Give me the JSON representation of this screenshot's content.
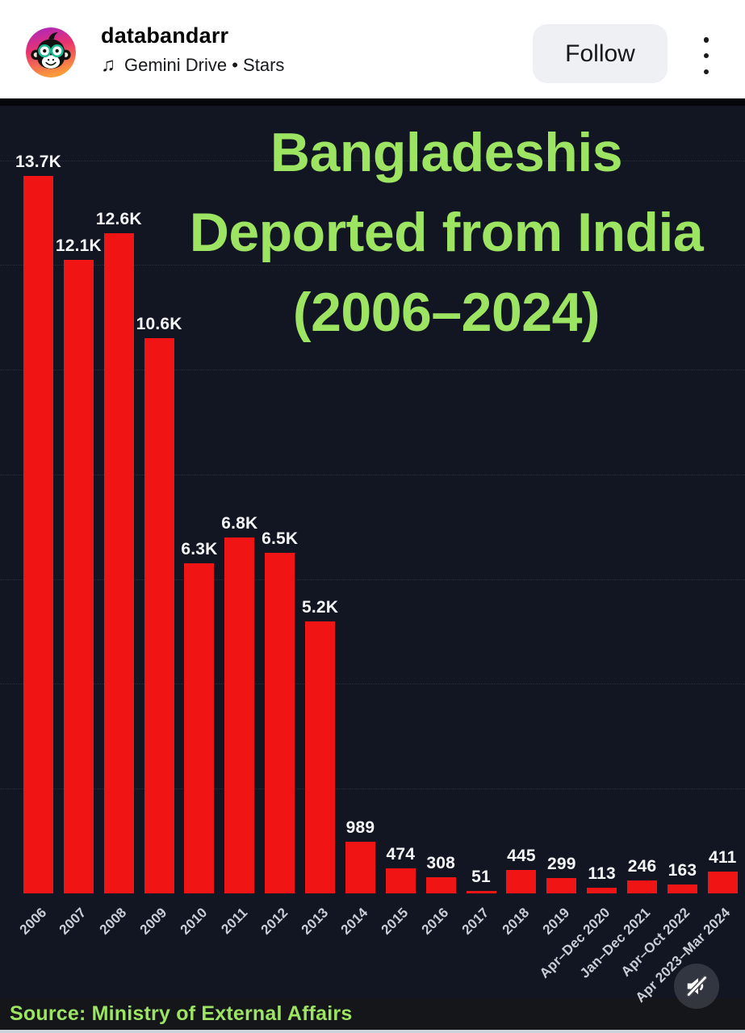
{
  "header": {
    "username": "databandarr",
    "music_icon": "♫",
    "audio_label": "Gemini Drive • Stars",
    "follow_label": "Follow"
  },
  "chart": {
    "title_lines": [
      "Bangladeshis",
      "Deported from India",
      "(2006–2024)"
    ],
    "source": "Source: Ministry of External Affairs",
    "colors": {
      "title_green": "#9de463",
      "bar_red": "#f11414",
      "background": "#121622",
      "value_label": "#f4f5f7",
      "axis_label": "#c9ced6"
    }
  },
  "chart_data": {
    "type": "bar",
    "title": "Bangladeshis Deported from India (2006–2024)",
    "categories": [
      "2006",
      "2007",
      "2008",
      "2009",
      "2010",
      "2011",
      "2012",
      "2013",
      "2014",
      "2015",
      "2016",
      "2017",
      "2018",
      "2019",
      "Apr–Dec 2020",
      "Jan–Dec 2021",
      "Apr–Oct 2022",
      "Apr 2023–Mar 2024"
    ],
    "values": [
      13700,
      12100,
      12600,
      10600,
      6300,
      6800,
      6500,
      5200,
      989,
      474,
      308,
      51,
      445,
      299,
      113,
      246,
      163,
      411
    ],
    "value_labels": [
      "13.7K",
      "12.1K",
      "12.6K",
      "10.6K",
      "6.3K",
      "6.8K",
      "6.5K",
      "5.2K",
      "989",
      "474",
      "308",
      "51",
      "445",
      "299",
      "113",
      "246",
      "163",
      "411"
    ],
    "xlabel": "",
    "ylabel": "",
    "ylim": [
      0,
      15000
    ],
    "gridline_values": [
      2000,
      4000,
      6000,
      8000,
      10000,
      12000,
      14000
    ],
    "grid": "dotted-horizontal",
    "legend": "none",
    "bar_color": "#f11414"
  },
  "player": {
    "mute_icon": "speaker-muted"
  }
}
